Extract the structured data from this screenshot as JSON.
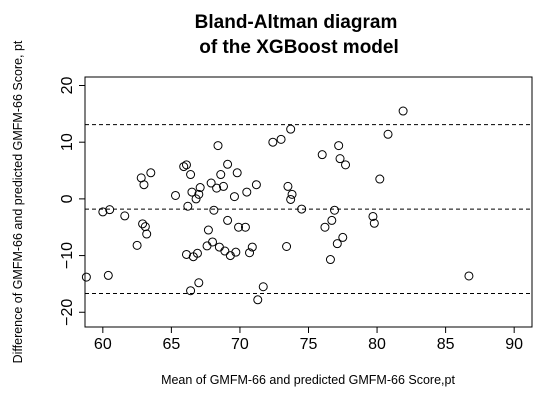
{
  "chart_data": {
    "type": "scatter",
    "title": [
      "Bland-Altman diagram",
      "of the XGBoost model"
    ],
    "xlabel": "Mean of GMFM-66 and predicted GMFM-66 Score,pt",
    "ylabel": "Difference of GMFM-66 and predicted GMFM-66 Score, pt",
    "xlim": [
      58.7,
      91.3
    ],
    "ylim": [
      -22.6,
      21.5
    ],
    "xticks": [
      60,
      65,
      70,
      75,
      80,
      85,
      90
    ],
    "yticks": [
      -20,
      -10,
      0,
      10,
      20
    ],
    "grid": false,
    "reference_lines": [
      13.1,
      -1.8,
      -16.7
    ],
    "points": [
      [
        58.8,
        -13.8
      ],
      [
        60.0,
        -2.3
      ],
      [
        60.4,
        -13.5
      ],
      [
        60.5,
        -1.9
      ],
      [
        61.6,
        -3.0
      ],
      [
        62.5,
        -8.2
      ],
      [
        62.8,
        3.7
      ],
      [
        62.9,
        -4.4
      ],
      [
        63.0,
        2.5
      ],
      [
        63.1,
        -4.9
      ],
      [
        63.2,
        -6.2
      ],
      [
        63.5,
        4.6
      ],
      [
        65.3,
        0.6
      ],
      [
        65.9,
        5.7
      ],
      [
        66.1,
        -9.8
      ],
      [
        66.1,
        6.0
      ],
      [
        66.2,
        -1.3
      ],
      [
        66.4,
        4.3
      ],
      [
        66.4,
        -16.2
      ],
      [
        66.5,
        1.2
      ],
      [
        66.6,
        -10.2
      ],
      [
        66.8,
        0.0
      ],
      [
        66.9,
        -9.6
      ],
      [
        67.0,
        0.8
      ],
      [
        67.0,
        -14.8
      ],
      [
        67.1,
        2.0
      ],
      [
        67.6,
        -8.3
      ],
      [
        67.7,
        -5.5
      ],
      [
        67.9,
        2.8
      ],
      [
        68.0,
        -7.6
      ],
      [
        68.1,
        -2.0
      ],
      [
        68.3,
        1.9
      ],
      [
        68.4,
        9.4
      ],
      [
        68.5,
        -8.5
      ],
      [
        68.6,
        4.3
      ],
      [
        68.8,
        2.2
      ],
      [
        68.9,
        -9.2
      ],
      [
        69.1,
        -3.8
      ],
      [
        69.1,
        6.1
      ],
      [
        69.3,
        -10.0
      ],
      [
        69.6,
        0.4
      ],
      [
        69.7,
        -9.4
      ],
      [
        69.8,
        4.6
      ],
      [
        69.9,
        -5.0
      ],
      [
        70.4,
        -5.0
      ],
      [
        70.5,
        1.2
      ],
      [
        70.7,
        -9.5
      ],
      [
        70.9,
        -8.5
      ],
      [
        71.2,
        2.5
      ],
      [
        71.3,
        -17.8
      ],
      [
        71.7,
        -15.5
      ],
      [
        72.4,
        10.0
      ],
      [
        73.0,
        10.5
      ],
      [
        73.4,
        -8.4
      ],
      [
        73.5,
        2.2
      ],
      [
        73.7,
        12.3
      ],
      [
        73.7,
        -0.1
      ],
      [
        73.8,
        0.8
      ],
      [
        74.5,
        -1.8
      ],
      [
        76.0,
        7.8
      ],
      [
        76.2,
        -5.0
      ],
      [
        76.6,
        -10.7
      ],
      [
        76.7,
        -3.8
      ],
      [
        76.9,
        -2.0
      ],
      [
        77.1,
        -7.9
      ],
      [
        77.2,
        9.4
      ],
      [
        77.3,
        7.1
      ],
      [
        77.5,
        -6.8
      ],
      [
        77.7,
        6.0
      ],
      [
        79.7,
        -3.1
      ],
      [
        79.8,
        -4.3
      ],
      [
        80.2,
        3.5
      ],
      [
        80.8,
        11.4
      ],
      [
        81.9,
        15.5
      ],
      [
        86.7,
        -13.6
      ]
    ]
  }
}
